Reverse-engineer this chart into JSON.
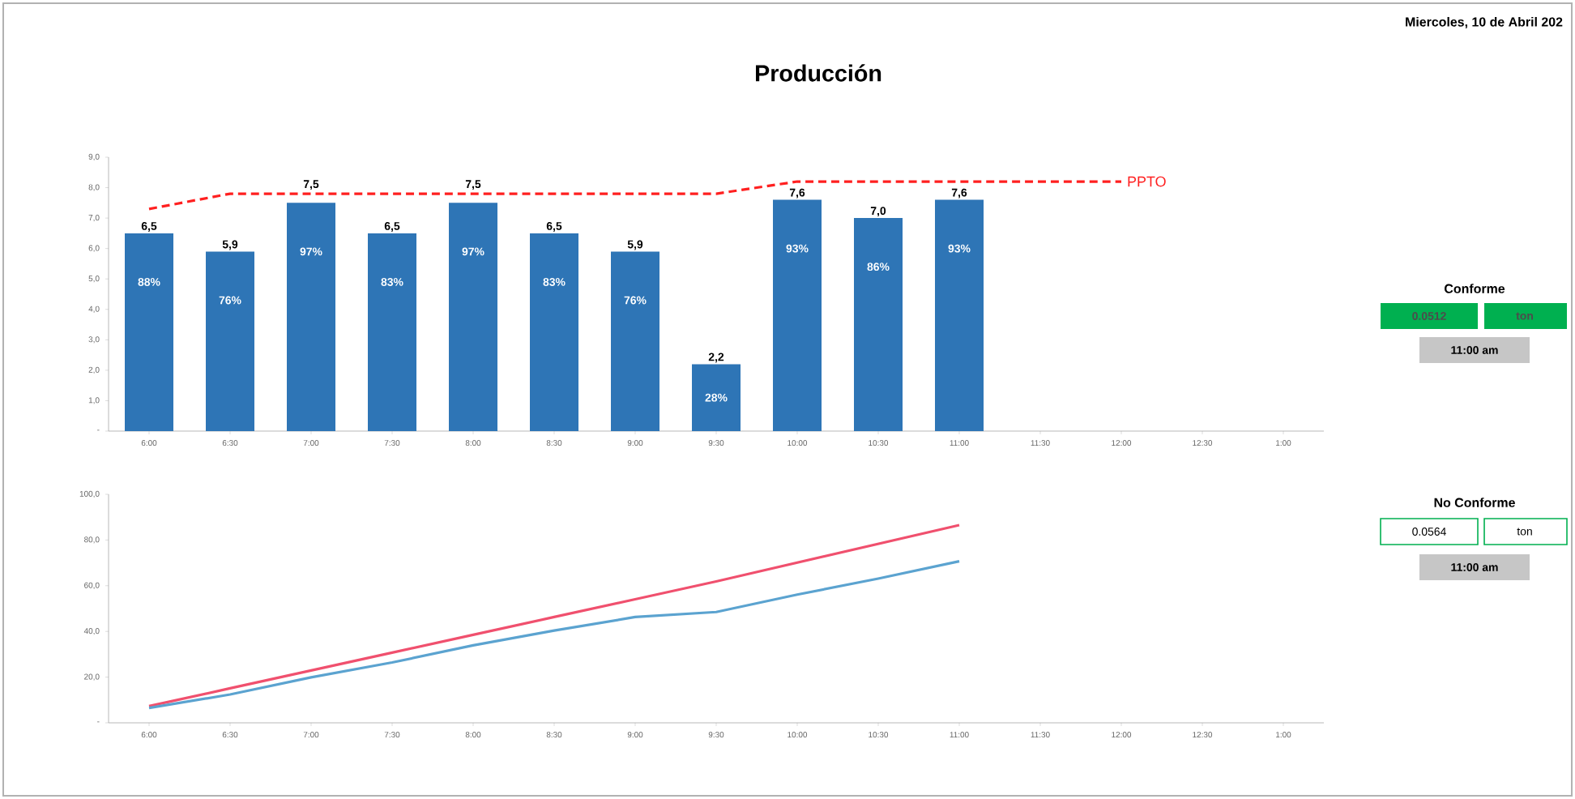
{
  "chart_data": [
    {
      "type": "bar",
      "title": "Producción",
      "categories": [
        "6:00",
        "6:30",
        "7:00",
        "7:30",
        "8:00",
        "8:30",
        "9:00",
        "9:30",
        "10:00",
        "10:30",
        "11:00",
        "11:30",
        "12:00",
        "12:30",
        "1:00"
      ],
      "ylim": [
        0,
        9
      ],
      "yticks": [
        {
          "value": 0,
          "label": "-"
        },
        {
          "value": 1,
          "label": "1,0"
        },
        {
          "value": 2,
          "label": "2,0"
        },
        {
          "value": 3,
          "label": "3,0"
        },
        {
          "value": 4,
          "label": "4,0"
        },
        {
          "value": 5,
          "label": "5,0"
        },
        {
          "value": 6,
          "label": "6,0"
        },
        {
          "value": 7,
          "label": "7,0"
        },
        {
          "value": 8,
          "label": "8,0"
        },
        {
          "value": 9,
          "label": "9,0"
        }
      ],
      "series": [
        {
          "type": "bar",
          "color": "#2e75b6",
          "values": [
            6.5,
            5.9,
            7.5,
            6.5,
            7.5,
            6.5,
            5.9,
            2.2,
            7.6,
            7.0,
            7.6,
            null,
            null,
            null,
            null
          ],
          "value_labels": [
            "6,5",
            "5,9",
            "7,5",
            "6,5",
            "7,5",
            "6,5",
            "5,9",
            "2,2",
            "7,6",
            "7,0",
            "7,6",
            null,
            null,
            null,
            null
          ]
        },
        {
          "type": "line",
          "name": "PPTO",
          "color": "#ff2020",
          "line_style": "dashed",
          "values": [
            7.3,
            7.8,
            7.8,
            7.8,
            7.8,
            7.8,
            7.8,
            7.8,
            8.2,
            8.2,
            8.2,
            8.2,
            8.2,
            null,
            null
          ]
        }
      ],
      "annotations": [
        "88%",
        "76%",
        "97%",
        "83%",
        "97%",
        "83%",
        "76%",
        "28%",
        "93%",
        "86%",
        "93%"
      ]
    },
    {
      "type": "line",
      "categories": [
        "6:00",
        "6:30",
        "7:00",
        "7:30",
        "8:00",
        "8:30",
        "9:00",
        "9:30",
        "10:00",
        "10:30",
        "11:00",
        "11:30",
        "12:00",
        "12:30",
        "1:00"
      ],
      "ylim": [
        0,
        100
      ],
      "yticks": [
        {
          "value": 0,
          "label": "-"
        },
        {
          "value": 20,
          "label": "20,0"
        },
        {
          "value": 40,
          "label": "40,0"
        },
        {
          "value": 60,
          "label": "60,0"
        },
        {
          "value": 80,
          "label": "80,0"
        },
        {
          "value": 100,
          "label": "100,0"
        }
      ],
      "series": [
        {
          "color": "#f0506e",
          "values": [
            7.3,
            15.1,
            22.9,
            30.7,
            38.5,
            46.3,
            54.1,
            61.9,
            70.1,
            78.3,
            86.5,
            null,
            null,
            null,
            null
          ]
        },
        {
          "color": "#5ba3d0",
          "values": [
            6.5,
            12.4,
            19.9,
            26.4,
            33.9,
            40.4,
            46.3,
            48.5,
            56.1,
            63.1,
            70.7,
            null,
            null,
            null,
            null
          ]
        }
      ]
    },
    {
      "type": "other",
      "annotations": [
        "Miercoles, 10 de Abril 202",
        "Conforme",
        "0.0512",
        "ton",
        "11:00 am",
        "No Conforme",
        "0.0564",
        "ton",
        "11:00 am"
      ]
    }
  ]
}
